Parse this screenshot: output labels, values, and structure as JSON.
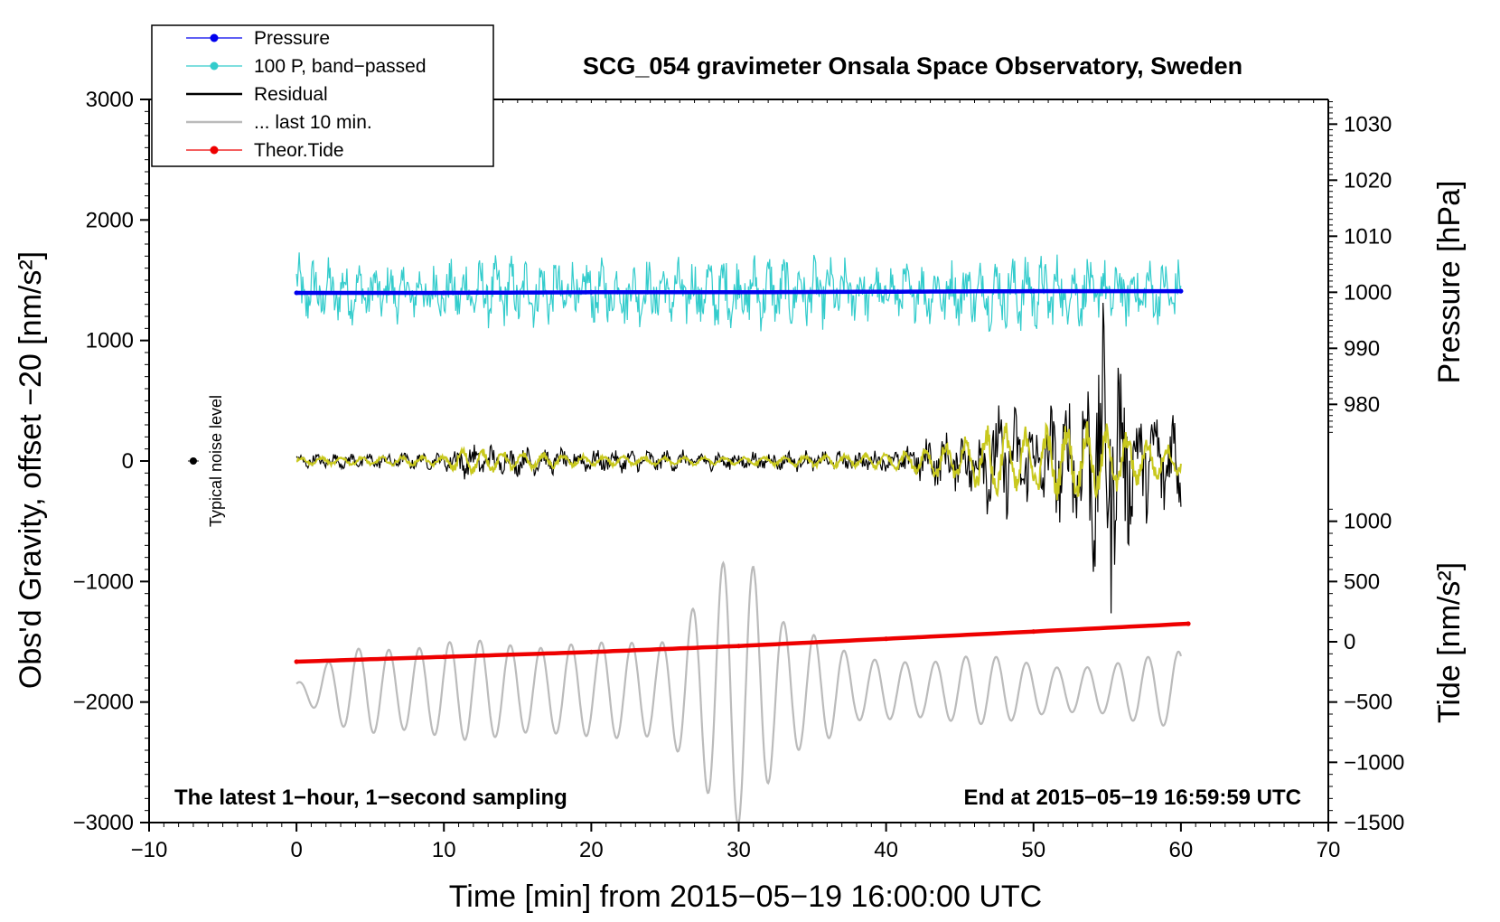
{
  "chart_data": {
    "type": "line",
    "title": "SCG_054 gravimeter Onsala Space Observatory, Sweden",
    "xlabel": "Time [min] from 2015−05−19 16:00:00 UTC",
    "ylabel_left": "Obs'd Gravity, offset −20 [nm/s²]",
    "ylabel_pressure": "Pressure [hPa]",
    "ylabel_tide": "Tide [nm/s²]",
    "xlim": [
      -10,
      70
    ],
    "ylim": [
      -3000,
      3000
    ],
    "x_ticks": [
      -10,
      0,
      10,
      20,
      30,
      40,
      50,
      60,
      70
    ],
    "x_tick_labels": [
      "−10",
      "0",
      "10",
      "20",
      "30",
      "40",
      "50",
      "60",
      "70"
    ],
    "y_ticks": [
      3000,
      2000,
      1000,
      0,
      -1000,
      -2000,
      -3000
    ],
    "y_tick_labels": [
      "3000",
      "2000",
      "1000",
      "0",
      "−1000",
      "−2000",
      "−3000"
    ],
    "pressure_axis": {
      "ticks": [
        1030,
        1020,
        1010,
        1000,
        990,
        980
      ],
      "tick_labels": [
        "1030",
        "1020",
        "1010",
        "1000",
        "990",
        "980"
      ],
      "gravity_at_1000": 1400,
      "gravity_per_hpa": 46.5
    },
    "tide_axis": {
      "ticks": [
        1000,
        500,
        0,
        -500,
        -1000,
        -1500
      ],
      "tick_labels": [
        "1000",
        "500",
        "0",
        "−500",
        "−1000",
        "−1500"
      ],
      "gravity_at_0": -1500,
      "gravity_per_unit": 1.0
    },
    "legend": [
      {
        "label": "Pressure",
        "color": "#0000ee",
        "marker": true
      },
      {
        "label": "100 P, band−passed",
        "color": "#33cccc",
        "marker": true
      },
      {
        "label": "Residual",
        "color": "#000000",
        "marker": false
      },
      {
        "label": "... last 10 min.",
        "color": "#bbbbbb",
        "marker": false
      },
      {
        "label": "Theor.Tide",
        "color": "#ee0000",
        "marker": true
      }
    ],
    "series": [
      {
        "name": "Pressure",
        "color": "#0000ee",
        "unit": "hPa",
        "x": [
          0,
          10,
          20,
          30,
          40,
          50,
          60
        ],
        "values": [
          999.9,
          999.9,
          1000.0,
          1000.0,
          1000.1,
          1000.2,
          1000.2
        ]
      },
      {
        "name": "100 P, band−passed",
        "color": "#33cccc",
        "baseline": 1400,
        "x": [
          0,
          5,
          10,
          15,
          20,
          25,
          30,
          35,
          40,
          45,
          50,
          55,
          60
        ],
        "amplitude": [
          260,
          200,
          220,
          250,
          230,
          230,
          270,
          250,
          200,
          230,
          280,
          240,
          230
        ]
      },
      {
        "name": "Residual",
        "color": "#000000",
        "baseline": 0,
        "x": [
          0,
          10,
          11,
          20,
          30,
          40,
          42,
          45,
          47,
          50,
          53,
          55,
          57,
          60
        ],
        "amplitude": [
          50,
          60,
          120,
          80,
          70,
          70,
          150,
          220,
          400,
          350,
          500,
          1100,
          400,
          400
        ]
      },
      {
        "name": "Residual, band−passed (yellow)",
        "color": "#c8c81e",
        "baseline": 0,
        "x": [
          0,
          10,
          11,
          20,
          30,
          40,
          43,
          46,
          47,
          50,
          52,
          55,
          57,
          60
        ],
        "amplitude": [
          30,
          40,
          100,
          40,
          30,
          60,
          120,
          200,
          300,
          260,
          300,
          280,
          200,
          100
        ]
      },
      {
        "name": "... last 10 min.",
        "color": "#bbbbbb",
        "baseline": -1900,
        "x": [
          0,
          3,
          5,
          10,
          15,
          20,
          25,
          28,
          29.5,
          31,
          33,
          35,
          38,
          42,
          45,
          50,
          55,
          58,
          60
        ],
        "amplitude": [
          60,
          300,
          420,
          400,
          450,
          380,
          500,
          900,
          1150,
          1100,
          700,
          550,
          250,
          280,
          300,
          250,
          200,
          300,
          400
        ]
      },
      {
        "name": "Theor.Tide",
        "color": "#ee0000",
        "unit": "nm/s²",
        "x": [
          0,
          10,
          20,
          30,
          40,
          50,
          60.5
        ],
        "values": [
          -165,
          -125,
          -85,
          -35,
          25,
          85,
          150
        ]
      }
    ],
    "annotations": {
      "noise_label": "Typical noise level",
      "noise_x": -7,
      "noise_y": 0,
      "bottom_left": "The latest 1−hour, 1−second sampling",
      "bottom_right": "End at 2015−05−19 16:59:59 UTC"
    }
  }
}
